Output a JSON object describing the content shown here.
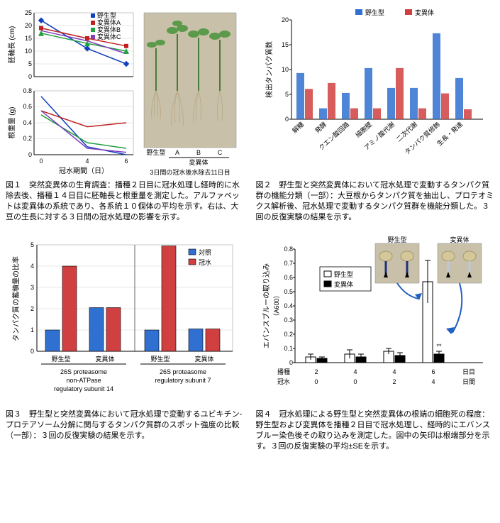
{
  "fig1": {
    "top_chart": {
      "type": "line",
      "ylabel": "胚軸長 (cm)",
      "ylim": [
        0,
        25
      ],
      "yticks": [
        0,
        5,
        10,
        15,
        20,
        25
      ],
      "xdata": [
        0,
        4,
        6
      ],
      "series": [
        {
          "name": "野生型",
          "color": "#1040c0",
          "marker": "diamond",
          "y": [
            22,
            11,
            5
          ]
        },
        {
          "name": "変異体A",
          "color": "#c02020",
          "marker": "square",
          "y": [
            19,
            15,
            12
          ]
        },
        {
          "name": "変異体B",
          "color": "#20a040",
          "marker": "triangle",
          "y": [
            17,
            13,
            10
          ]
        },
        {
          "name": "変異体C",
          "color": "#8040c0",
          "marker": "x",
          "y": [
            18,
            14,
            9
          ]
        }
      ]
    },
    "bottom_chart": {
      "type": "line",
      "ylabel": "根重量 (g)",
      "xlabel": "冠水期間（日）",
      "ylim": [
        0,
        0.8
      ],
      "yticks": [
        0,
        0.2,
        0.4,
        0.6,
        0.8
      ],
      "xdata": [
        0,
        4,
        6
      ],
      "series": [
        {
          "name": "野生型",
          "color": "#1040c0",
          "marker": "diamond",
          "y": [
            0.73,
            0.1,
            0.0
          ]
        },
        {
          "name": "変異体A",
          "color": "#c02020",
          "marker": "square",
          "y": [
            0.55,
            0.35,
            0.4
          ]
        },
        {
          "name": "変異体B",
          "color": "#20a040",
          "marker": "triangle",
          "y": [
            0.5,
            0.15,
            0.08
          ]
        },
        {
          "name": "変異体C",
          "color": "#8040c0",
          "marker": "x",
          "y": [
            0.55,
            0.08,
            0.03
          ]
        }
      ]
    },
    "photo": {
      "labels": [
        "野生型",
        "A",
        "B",
        "C"
      ],
      "group_label": "変異体",
      "caption_below": "3日間の冠水後水除去11日目"
    },
    "caption": "図１　突然変異体の生育調査：播種２日目に冠水処理し経時的に水除去後、播種１４日目に胚軸長と根重量を測定した。アルファベットは変異体の系統であり、各系統１０個体の平均を示す。右は、大豆の生長に対する３日間の冠水処理の影響を示す。"
  },
  "fig2": {
    "type": "bar",
    "ylabel": "検出タンパク質数",
    "ylim": [
      0,
      20
    ],
    "yticks": [
      0,
      5,
      10,
      15,
      20
    ],
    "legend": [
      {
        "name": "野生型",
        "color": "#3070d0"
      },
      {
        "name": "変異体",
        "color": "#d04040"
      }
    ],
    "categories": [
      "解糖",
      "発酵",
      "クエン酸回路",
      "細胞壁",
      "アミノ酸代謝",
      "二次代謝",
      "タンパク質修飾",
      "生長・発達"
    ],
    "wt": [
      9.3,
      2.2,
      5.3,
      10.3,
      6.3,
      6.3,
      17.3,
      8.3
    ],
    "mut": [
      6.1,
      7.3,
      2.2,
      2.2,
      10.3,
      2.2,
      5.2,
      2.0
    ],
    "bar_fill_opacity": 0.85,
    "caption": "図２　野生型と突然変異体において冠水処理で変動するタンパク質群の機能分類（一部）：大豆根からタンパク質を抽出し、プロテオミクス解析後、冠水処理で変動するタンパク質群を機能分類した。３回の反復実験の結果を示す。"
  },
  "fig3": {
    "type": "bar",
    "ylabel": "タンパク質の蓄積量の比率",
    "ylim": [
      0,
      5
    ],
    "yticks": [
      0,
      1,
      2,
      3,
      4,
      5
    ],
    "legend": [
      {
        "name": "対照",
        "color": "#3070d0"
      },
      {
        "name": "冠水",
        "color": "#d04040"
      }
    ],
    "groups": [
      {
        "name": "26S proteasome non-ATPase regulatory subunit 14",
        "sub": [
          {
            "label": "野生型",
            "ctrl": 1.0,
            "fw": 4.0
          },
          {
            "label": "変異体",
            "ctrl": 2.05,
            "fw": 2.05
          }
        ]
      },
      {
        "name": "26S proteasome regulatory subunit 7",
        "sub": [
          {
            "label": "野生型",
            "ctrl": 1.0,
            "fw": 4.95
          },
          {
            "label": "変異体",
            "ctrl": 1.05,
            "fw": 1.05
          }
        ]
      }
    ],
    "bar_border": "#000",
    "caption": "図３　野生型と突然変異体において冠水処理で変動するユビキチン-プロテアソーム分解に関与するタンパク質群のスポット強度の比較（一部）：３回の反復実験の結果を示す。"
  },
  "fig4": {
    "type": "bar",
    "ylabel": "エバンスブルーの取り込み（A600）",
    "ylim": [
      0,
      0.8
    ],
    "yticks": [
      0,
      0.1,
      0.2,
      0.3,
      0.4,
      0.5,
      0.6,
      0.7,
      0.8
    ],
    "legend": [
      {
        "name": "野生型",
        "fill": "#ffffff",
        "stroke": "#000"
      },
      {
        "name": "変異体",
        "fill": "#000000",
        "stroke": "#000"
      }
    ],
    "x_rows": {
      "row1_label": "播種",
      "row2_label": "冠水",
      "row1": [
        "2",
        "4",
        "4",
        "6",
        "日目"
      ],
      "row2": [
        "0",
        "0",
        "2",
        "4",
        "日間"
      ]
    },
    "data": [
      {
        "wt": 0.04,
        "wt_err": 0.02,
        "mut": 0.03,
        "mut_err": 0.01
      },
      {
        "wt": 0.06,
        "wt_err": 0.03,
        "mut": 0.04,
        "mut_err": 0.02
      },
      {
        "wt": 0.08,
        "wt_err": 0.02,
        "mut": 0.05,
        "mut_err": 0.02
      },
      {
        "wt": 0.57,
        "wt_err": 0.15,
        "mut": 0.06,
        "mut_err": 0.02,
        "sig": "**"
      }
    ],
    "photo_labels": {
      "wt": "野生型",
      "mut": "変異体"
    },
    "caption": "図４　冠水処理による野生型と突然変異体の根端の細胞死の程度：野生型および変異体を播種２日目で冠水処理し、経時的にエバンスブルー染色後その取り込みを測定した。図中の矢印は根端部分を示す。３回の反復実験の平均±SEを示す。"
  }
}
